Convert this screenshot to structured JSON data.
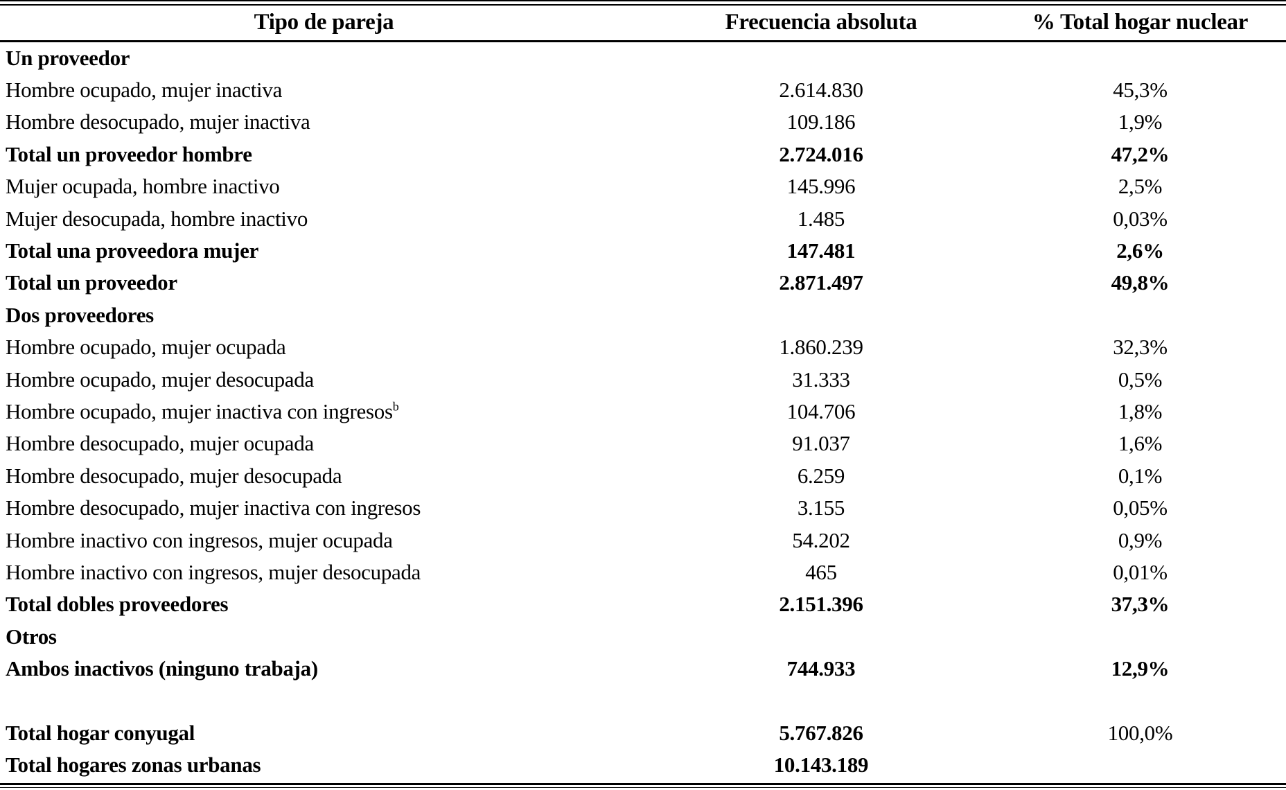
{
  "colors": {
    "text": "#000000",
    "background": "#ffffff",
    "rule": "#000000"
  },
  "table": {
    "columns": [
      "Tipo de pareja",
      "Frecuencia absoluta",
      "% Total hogar nuclear"
    ],
    "rows": [
      {
        "label": "Un proveedor",
        "freq": "",
        "pct": "",
        "label_bold": true
      },
      {
        "label": "Hombre ocupado, mujer inactiva",
        "freq": "2.614.830",
        "pct": "45,3%"
      },
      {
        "label": "Hombre desocupado, mujer inactiva",
        "freq": "109.186",
        "pct": "1,9%"
      },
      {
        "label": "Total un proveedor hombre",
        "freq": "2.724.016",
        "pct": "47,2%",
        "label_bold": true,
        "freq_bold": true,
        "pct_bold": true
      },
      {
        "label": "Mujer ocupada, hombre inactivo",
        "freq": "145.996",
        "pct": "2,5%"
      },
      {
        "label": "Mujer desocupada, hombre inactivo",
        "freq": "1.485",
        "pct": "0,03%"
      },
      {
        "label": "Total una proveedora mujer",
        "freq": "147.481",
        "pct": "2,6%",
        "label_bold": true,
        "freq_bold": true,
        "pct_bold": true
      },
      {
        "label": "Total un proveedor",
        "freq": "2.871.497",
        "pct": "49,8%",
        "label_bold": true,
        "freq_bold": true,
        "pct_bold": true
      },
      {
        "label": "Dos proveedores",
        "freq": "",
        "pct": "",
        "label_bold": true
      },
      {
        "label": "Hombre ocupado, mujer ocupada",
        "freq": "1.860.239",
        "pct": "32,3%"
      },
      {
        "label": "Hombre ocupado, mujer desocupada",
        "freq": "31.333",
        "pct": "0,5%"
      },
      {
        "label": "Hombre ocupado, mujer inactiva con ingresos",
        "sup": "b",
        "freq": "104.706",
        "pct": "1,8%"
      },
      {
        "label": "Hombre desocupado, mujer ocupada",
        "freq": "91.037",
        "pct": "1,6%"
      },
      {
        "label": "Hombre desocupado, mujer desocupada",
        "freq": "6.259",
        "pct": "0,1%"
      },
      {
        "label": "Hombre desocupado, mujer inactiva con ingresos",
        "freq": "3.155",
        "pct": "0,05%"
      },
      {
        "label": "Hombre inactivo con ingresos, mujer ocupada",
        "freq": "54.202",
        "pct": "0,9%"
      },
      {
        "label": "Hombre inactivo con ingresos, mujer desocupada",
        "freq": "465",
        "pct": "0,01%"
      },
      {
        "label": "Total dobles proveedores",
        "freq": "2.151.396",
        "pct": "37,3%",
        "label_bold": true,
        "freq_bold": true,
        "pct_bold": true
      },
      {
        "label": "Otros",
        "freq": "",
        "pct": "",
        "label_bold": true
      },
      {
        "label": "Ambos inactivos (ninguno trabaja)",
        "freq": "744.933",
        "pct": "12,9%",
        "label_bold": true,
        "freq_bold": true,
        "pct_bold": true
      },
      {
        "label": "",
        "freq": "",
        "pct": "",
        "spacer": true
      },
      {
        "label": "Total hogar conyugal",
        "freq": "5.767.826",
        "pct": "100,0%",
        "label_bold": true,
        "freq_bold": true
      },
      {
        "label": "Total hogares zonas urbanas",
        "freq": "10.143.189",
        "pct": "",
        "label_bold": true,
        "freq_bold": true
      }
    ]
  },
  "chart_data": {
    "type": "table",
    "columns": [
      "Tipo de pareja",
      "Frecuencia absoluta",
      "% Total hogar nuclear"
    ],
    "rows": [
      [
        "Un proveedor",
        "",
        ""
      ],
      [
        "Hombre ocupado, mujer inactiva",
        "2.614.830",
        "45,3%"
      ],
      [
        "Hombre desocupado, mujer inactiva",
        "109.186",
        "1,9%"
      ],
      [
        "Total un proveedor hombre",
        "2.724.016",
        "47,2%"
      ],
      [
        "Mujer ocupada, hombre inactivo",
        "145.996",
        "2,5%"
      ],
      [
        "Mujer desocupada, hombre inactivo",
        "1.485",
        "0,03%"
      ],
      [
        "Total una proveedora mujer",
        "147.481",
        "2,6%"
      ],
      [
        "Total un proveedor",
        "2.871.497",
        "49,8%"
      ],
      [
        "Dos proveedores",
        "",
        ""
      ],
      [
        "Hombre ocupado, mujer ocupada",
        "1.860.239",
        "32,3%"
      ],
      [
        "Hombre ocupado, mujer desocupada",
        "31.333",
        "0,5%"
      ],
      [
        "Hombre ocupado, mujer inactiva con ingresos b",
        "104.706",
        "1,8%"
      ],
      [
        "Hombre desocupado, mujer ocupada",
        "91.037",
        "1,6%"
      ],
      [
        "Hombre desocupado, mujer desocupada",
        "6.259",
        "0,1%"
      ],
      [
        "Hombre desocupado, mujer inactiva con ingresos",
        "3.155",
        "0,05%"
      ],
      [
        "Hombre inactivo con ingresos, mujer ocupada",
        "54.202",
        "0,9%"
      ],
      [
        "Hombre inactivo con ingresos, mujer desocupada",
        "465",
        "0,01%"
      ],
      [
        "Total dobles proveedores",
        "2.151.396",
        "37,3%"
      ],
      [
        "Otros",
        "",
        ""
      ],
      [
        "Ambos inactivos (ninguno trabaja)",
        "744.933",
        "12,9%"
      ],
      [
        "Total hogar conyugal",
        "5.767.826",
        "100,0%"
      ],
      [
        "Total hogares zonas urbanas",
        "10.143.189",
        ""
      ]
    ]
  }
}
